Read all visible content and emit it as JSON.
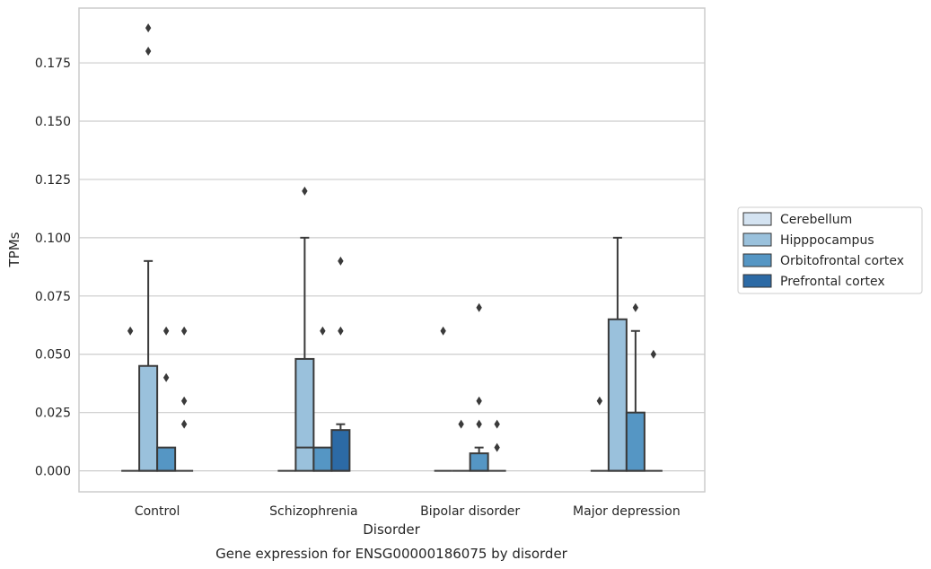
{
  "chart_data": {
    "type": "box",
    "title": "Gene expression for ENSG00000186075 by disorder",
    "xlabel": "Disorder",
    "ylabel": "TPMs",
    "ylim": [
      -0.009,
      0.1985
    ],
    "yticks": [
      0.0,
      0.025,
      0.05,
      0.075,
      0.1,
      0.125,
      0.15,
      0.175
    ],
    "ytick_labels": [
      "0.000",
      "0.025",
      "0.050",
      "0.075",
      "0.100",
      "0.125",
      "0.150",
      "0.175"
    ],
    "grid": "horizontal",
    "legend_position": "right",
    "categories": [
      "Control",
      "Schizophrenia",
      "Bipolar disorder",
      "Major depression"
    ],
    "series": [
      {
        "name": "Cerebellum",
        "color": "#d4e3f1",
        "boxes": [
          {
            "category": "Control",
            "q1": 0,
            "median": 0,
            "q3": 0,
            "whisker_low": 0,
            "whisker_high": 0,
            "outliers": [
              0.06
            ]
          },
          {
            "category": "Schizophrenia",
            "q1": 0,
            "median": 0,
            "q3": 0,
            "whisker_low": 0,
            "whisker_high": 0,
            "outliers": []
          },
          {
            "category": "Bipolar disorder",
            "q1": 0,
            "median": 0,
            "q3": 0,
            "whisker_low": 0,
            "whisker_high": 0,
            "outliers": [
              0.06
            ]
          },
          {
            "category": "Major depression",
            "q1": 0,
            "median": 0,
            "q3": 0,
            "whisker_low": 0,
            "whisker_high": 0,
            "outliers": [
              0.03
            ]
          }
        ]
      },
      {
        "name": "Hipppocampus",
        "color": "#9ac1dc",
        "boxes": [
          {
            "category": "Control",
            "q1": 0,
            "median": 0,
            "q3": 0.045,
            "whisker_low": 0,
            "whisker_high": 0.09,
            "outliers": [
              0.18,
              0.19
            ]
          },
          {
            "category": "Schizophrenia",
            "q1": 0,
            "median": 0.01,
            "q3": 0.048,
            "whisker_low": 0,
            "whisker_high": 0.1,
            "outliers": [
              0.12
            ]
          },
          {
            "category": "Bipolar disorder",
            "q1": 0,
            "median": 0,
            "q3": 0,
            "whisker_low": 0,
            "whisker_high": 0,
            "outliers": [
              0.02
            ]
          },
          {
            "category": "Major depression",
            "q1": 0,
            "median": 0,
            "q3": 0.065,
            "whisker_low": 0,
            "whisker_high": 0.1,
            "outliers": []
          }
        ]
      },
      {
        "name": "Orbitofrontal cortex",
        "color": "#5596c4",
        "boxes": [
          {
            "category": "Control",
            "q1": 0,
            "median": 0,
            "q3": 0.01,
            "whisker_low": 0,
            "whisker_high": 0.01,
            "outliers": [
              0.04,
              0.06
            ]
          },
          {
            "category": "Schizophrenia",
            "q1": 0,
            "median": 0,
            "q3": 0.01,
            "whisker_low": 0,
            "whisker_high": 0.01,
            "outliers": [
              0.06
            ]
          },
          {
            "category": "Bipolar disorder",
            "q1": 0,
            "median": 0,
            "q3": 0.0075,
            "whisker_low": 0,
            "whisker_high": 0.01,
            "outliers": [
              0.02,
              0.03,
              0.07
            ]
          },
          {
            "category": "Major depression",
            "q1": 0,
            "median": 0,
            "q3": 0.025,
            "whisker_low": 0,
            "whisker_high": 0.06,
            "outliers": [
              0.07
            ]
          }
        ]
      },
      {
        "name": "Prefrontal cortex",
        "color": "#2c6aa5",
        "boxes": [
          {
            "category": "Control",
            "q1": 0,
            "median": 0,
            "q3": 0,
            "whisker_low": 0,
            "whisker_high": 0,
            "outliers": [
              0.02,
              0.03,
              0.06
            ]
          },
          {
            "category": "Schizophrenia",
            "q1": 0,
            "median": 0,
            "q3": 0.0175,
            "whisker_low": 0,
            "whisker_high": 0.02,
            "outliers": [
              0.06,
              0.09
            ]
          },
          {
            "category": "Bipolar disorder",
            "q1": 0,
            "median": 0,
            "q3": 0,
            "whisker_low": 0,
            "whisker_high": 0,
            "outliers": [
              0.01,
              0.02
            ]
          },
          {
            "category": "Major depression",
            "q1": 0,
            "median": 0,
            "q3": 0,
            "whisker_low": 0,
            "whisker_high": 0,
            "outliers": [
              0.05
            ]
          }
        ]
      }
    ],
    "colors": {
      "edge": "#3a3a3a",
      "grid": "#cccccc",
      "spine": "#cccccc",
      "text": "#262626"
    }
  }
}
